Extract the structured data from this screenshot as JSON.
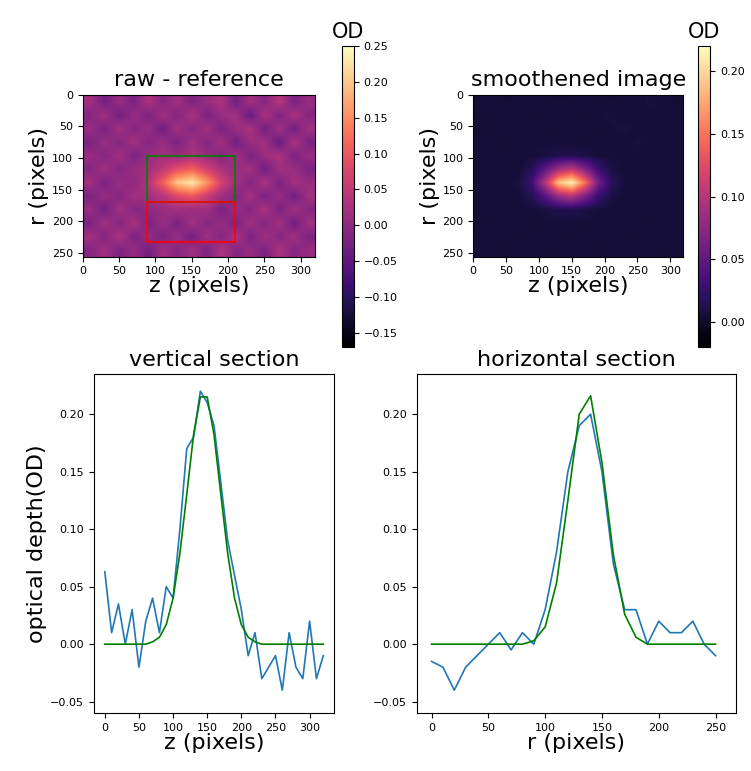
{
  "chart_data": [
    {
      "type": "heatmap",
      "title": "raw - reference",
      "x_label": "z (pixels)",
      "y_label": "r (pixels)",
      "xlim": [
        0,
        320
      ],
      "ylim": [
        256,
        0
      ],
      "xticks": [
        0,
        50,
        100,
        150,
        200,
        250,
        300
      ],
      "yticks": [
        0,
        50,
        100,
        150,
        200,
        250
      ],
      "color": "magma",
      "color_label": "OD",
      "color_range": [
        -0.17,
        0.25
      ],
      "color_ticks": [
        {
          "value": -0.15,
          "label": "−0.15"
        },
        {
          "value": -0.1,
          "label": "−0.10"
        },
        {
          "value": -0.05,
          "label": "−0.05"
        },
        {
          "value": 0.0,
          "label": "0.00"
        },
        {
          "value": 0.05,
          "label": "0.05"
        },
        {
          "value": 0.1,
          "label": "0.10"
        },
        {
          "value": 0.15,
          "label": "0.15"
        },
        {
          "value": 0.2,
          "label": "0.20"
        },
        {
          "value": 0.25,
          "label": "0.25"
        }
      ],
      "cells": [
        [
          0.02,
          -0.03,
          0.01,
          -0.02,
          0.03,
          -0.01,
          0.02,
          -0.02,
          0.01,
          0.03,
          -0.03,
          0.02,
          -0.01,
          0.04,
          -0.02,
          0.01
        ],
        [
          -0.01,
          0.02,
          -0.03,
          0.01,
          -0.02,
          0.02,
          -0.01,
          0.03,
          -0.02,
          0.01,
          0.02,
          -0.04,
          0.03,
          -0.02,
          0.03,
          -0.01
        ],
        [
          0.01,
          -0.02,
          0.02,
          -0.01,
          0.01,
          -0.03,
          0.02,
          -0.01,
          0.02,
          -0.02,
          0.01,
          0.03,
          -0.03,
          0.02,
          -0.03,
          0.02
        ],
        [
          -0.02,
          0.01,
          -0.01,
          0.02,
          -0.01,
          0.01,
          -0.02,
          0.02,
          -0.01,
          0.02,
          -0.03,
          0.01,
          0.02,
          -0.04,
          0.03,
          -0.02
        ],
        [
          0.01,
          -0.01,
          0.02,
          -0.02,
          0.01,
          0.02,
          0.01,
          0.03,
          0.01,
          -0.01,
          0.02,
          -0.02,
          0.01,
          0.03,
          -0.02,
          0.01
        ],
        [
          -0.01,
          0.02,
          -0.01,
          0.01,
          0.02,
          0.05,
          0.09,
          0.11,
          0.07,
          0.03,
          0.01,
          0.02,
          -0.03,
          0.02,
          0.01,
          -0.02
        ],
        [
          0.02,
          -0.02,
          0.01,
          0.0,
          0.04,
          0.11,
          0.2,
          0.23,
          0.16,
          0.07,
          0.02,
          -0.01,
          0.03,
          -0.02,
          0.02,
          0.01
        ],
        [
          -0.02,
          0.01,
          -0.01,
          0.02,
          0.02,
          0.04,
          0.08,
          0.1,
          0.06,
          0.02,
          -0.01,
          0.02,
          -0.02,
          0.01,
          -0.03,
          0.02
        ],
        [
          0.01,
          -0.03,
          0.02,
          -0.01,
          0.0,
          0.01,
          0.02,
          0.01,
          0.02,
          -0.02,
          0.01,
          -0.01,
          0.03,
          -0.02,
          0.02,
          -0.01
        ],
        [
          -0.02,
          0.02,
          -0.01,
          0.03,
          -0.02,
          0.01,
          -0.02,
          0.02,
          -0.01,
          0.01,
          -0.02,
          0.02,
          -0.01,
          0.02,
          -0.03,
          0.02
        ],
        [
          0.02,
          -0.01,
          0.03,
          -0.02,
          0.01,
          -0.02,
          0.01,
          -0.03,
          0.02,
          -0.01,
          0.03,
          -0.02,
          0.02,
          -0.01,
          0.02,
          -0.02
        ],
        [
          -0.01,
          0.02,
          -0.02,
          0.01,
          -0.03,
          0.02,
          -0.01,
          0.02,
          -0.02,
          0.03,
          -0.01,
          0.01,
          -0.02,
          0.03,
          -0.01,
          0.01
        ]
      ],
      "regions": [
        {
          "color": "green",
          "x": [
            88,
            210
          ],
          "y": [
            97,
            170
          ]
        },
        {
          "color": "red",
          "x": [
            88,
            210
          ],
          "y": [
            170,
            232
          ]
        }
      ]
    },
    {
      "type": "heatmap",
      "title": "smoothened image",
      "x_label": "z (pixels)",
      "y_label": "r (pixels)",
      "xlim": [
        0,
        320
      ],
      "ylim": [
        256,
        0
      ],
      "xticks": [
        0,
        50,
        100,
        150,
        200,
        250,
        300
      ],
      "yticks": [
        0,
        50,
        100,
        150,
        200,
        250
      ],
      "color": "magma",
      "color_label": "OD",
      "color_range": [
        -0.02,
        0.22
      ],
      "color_ticks": [
        {
          "value": 0.0,
          "label": "0.00"
        },
        {
          "value": 0.05,
          "label": "0.05"
        },
        {
          "value": 0.1,
          "label": "0.10"
        },
        {
          "value": 0.15,
          "label": "0.15"
        },
        {
          "value": 0.2,
          "label": "0.20"
        }
      ],
      "cells": [
        [
          0.005,
          0.006,
          0.004,
          0.005,
          0.006,
          0.005,
          0.004,
          0.005,
          0.006,
          0.005,
          0.004,
          0.006,
          0.005,
          0.007,
          0.005,
          0.004
        ],
        [
          0.004,
          0.005,
          0.006,
          0.005,
          0.004,
          0.005,
          0.006,
          0.005,
          0.004,
          0.006,
          0.007,
          0.005,
          0.006,
          0.005,
          0.006,
          0.005
        ],
        [
          0.005,
          0.004,
          0.005,
          0.006,
          0.005,
          0.004,
          0.005,
          0.006,
          0.005,
          0.004,
          0.006,
          0.007,
          0.005,
          0.006,
          0.005,
          0.006
        ],
        [
          0.006,
          0.005,
          0.004,
          0.005,
          0.006,
          0.005,
          0.006,
          0.005,
          0.004,
          0.005,
          0.006,
          0.005,
          0.007,
          0.005,
          0.006,
          0.005
        ],
        [
          0.005,
          0.005,
          0.005,
          0.005,
          0.005,
          0.008,
          0.012,
          0.014,
          0.01,
          0.006,
          0.005,
          0.005,
          0.005,
          0.005,
          0.005,
          0.005
        ],
        [
          0.005,
          0.005,
          0.005,
          0.005,
          0.018,
          0.048,
          0.088,
          0.105,
          0.07,
          0.03,
          0.01,
          0.005,
          0.005,
          0.005,
          0.005,
          0.005
        ],
        [
          0.005,
          0.005,
          0.005,
          0.008,
          0.032,
          0.1,
          0.19,
          0.215,
          0.15,
          0.062,
          0.018,
          0.006,
          0.005,
          0.005,
          0.005,
          0.005
        ],
        [
          0.005,
          0.005,
          0.005,
          0.005,
          0.016,
          0.045,
          0.082,
          0.098,
          0.066,
          0.028,
          0.009,
          0.005,
          0.005,
          0.005,
          0.005,
          0.005
        ],
        [
          0.005,
          0.005,
          0.005,
          0.005,
          0.005,
          0.008,
          0.012,
          0.014,
          0.01,
          0.006,
          0.005,
          0.005,
          0.005,
          0.005,
          0.005,
          0.005
        ],
        [
          0.004,
          0.005,
          0.006,
          0.005,
          0.004,
          0.005,
          0.006,
          0.005,
          0.004,
          0.006,
          0.005,
          0.006,
          0.005,
          0.004,
          0.006,
          0.005
        ],
        [
          0.005,
          0.006,
          0.005,
          0.004,
          0.005,
          0.006,
          0.005,
          0.004,
          0.005,
          0.005,
          0.006,
          0.005,
          0.004,
          0.006,
          0.005,
          0.006
        ],
        [
          0.006,
          0.005,
          0.004,
          0.005,
          0.006,
          0.005,
          0.004,
          0.006,
          0.005,
          0.004,
          0.005,
          0.006,
          0.005,
          0.005,
          0.004,
          0.005
        ]
      ]
    },
    {
      "type": "line",
      "title": "vertical section",
      "x_label": "z (pixels)",
      "y_label": "optical depth(OD)",
      "xlim": [
        -16,
        336
      ],
      "ylim": [
        -0.06,
        0.235
      ],
      "xticks": [
        0,
        50,
        100,
        150,
        200,
        250,
        300
      ],
      "yticks": [
        {
          "value": -0.05,
          "label": "−0.05"
        },
        {
          "value": 0.0,
          "label": "0.00"
        },
        {
          "value": 0.05,
          "label": "0.05"
        },
        {
          "value": 0.1,
          "label": "0.10"
        },
        {
          "value": 0.15,
          "label": "0.15"
        },
        {
          "value": 0.2,
          "label": "0.20"
        }
      ],
      "x": [
        0,
        10,
        20,
        30,
        40,
        50,
        60,
        70,
        80,
        90,
        100,
        110,
        120,
        130,
        140,
        150,
        160,
        170,
        180,
        190,
        200,
        210,
        220,
        230,
        240,
        250,
        260,
        270,
        280,
        290,
        300,
        310,
        320
      ],
      "series": [
        {
          "color": "#1f77b4",
          "values": [
            0.063,
            0.01,
            0.035,
            0.0,
            0.03,
            -0.02,
            0.02,
            0.04,
            0.01,
            0.05,
            0.04,
            0.1,
            0.17,
            0.18,
            0.22,
            0.21,
            0.19,
            0.14,
            0.09,
            0.06,
            0.03,
            -0.01,
            0.01,
            -0.03,
            -0.02,
            -0.01,
            -0.04,
            0.01,
            -0.02,
            -0.03,
            0.02,
            -0.03,
            -0.01
          ]
        },
        {
          "color": "green",
          "values": [
            0.0,
            0.0,
            0.0,
            0.0,
            0.0,
            0.0,
            0.0,
            0.002,
            0.006,
            0.017,
            0.04,
            0.079,
            0.13,
            0.182,
            0.215,
            0.215,
            0.182,
            0.13,
            0.079,
            0.04,
            0.017,
            0.006,
            0.002,
            0.0,
            0.0,
            0.0,
            0.0,
            0.0,
            0.0,
            0.0,
            0.0,
            0.0,
            0.0
          ]
        }
      ]
    },
    {
      "type": "line",
      "title": "horizontal section",
      "x_label": "r (pixels)",
      "xlim": [
        -13,
        268
      ],
      "ylim": [
        -0.06,
        0.235
      ],
      "xticks": [
        0,
        50,
        100,
        150,
        200,
        250
      ],
      "yticks": [
        {
          "value": -0.05,
          "label": "−0.05"
        },
        {
          "value": 0.0,
          "label": "0.00"
        },
        {
          "value": 0.05,
          "label": "0.05"
        },
        {
          "value": 0.1,
          "label": "0.10"
        },
        {
          "value": 0.15,
          "label": "0.15"
        },
        {
          "value": 0.2,
          "label": "0.20"
        }
      ],
      "x": [
        0,
        10,
        20,
        30,
        40,
        50,
        60,
        70,
        80,
        90,
        100,
        110,
        120,
        130,
        140,
        150,
        160,
        170,
        180,
        190,
        200,
        210,
        220,
        230,
        240,
        250
      ],
      "series": [
        {
          "color": "#1f77b4",
          "values": [
            -0.015,
            -0.02,
            -0.04,
            -0.02,
            -0.01,
            0.0,
            0.01,
            -0.005,
            0.01,
            0.0,
            0.03,
            0.08,
            0.15,
            0.19,
            0.2,
            0.15,
            0.07,
            0.03,
            0.03,
            0.0,
            0.02,
            0.01,
            0.01,
            0.02,
            0.0,
            -0.01
          ]
        },
        {
          "color": "green",
          "values": [
            0.0,
            0.0,
            0.0,
            0.0,
            0.0,
            0.0,
            0.0,
            0.0,
            0.0,
            0.003,
            0.015,
            0.053,
            0.125,
            0.2,
            0.216,
            0.158,
            0.078,
            0.026,
            0.006,
            0.0,
            0.0,
            0.0,
            0.0,
            0.0,
            0.0,
            0.0
          ]
        }
      ]
    }
  ]
}
